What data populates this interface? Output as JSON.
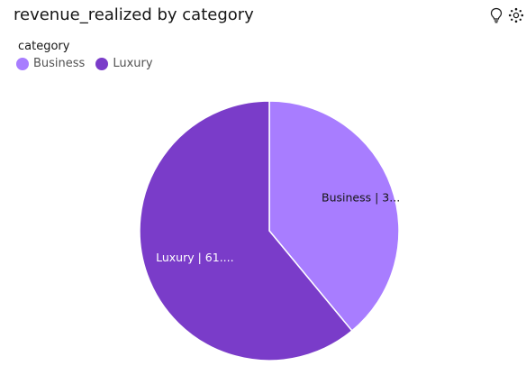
{
  "header": {
    "title": "revenue_realized by category",
    "insights_icon": "lightbulb-icon",
    "settings_icon": "gear-icon"
  },
  "legend": {
    "title": "category",
    "items": [
      {
        "label": "Business",
        "color": "#a87dff"
      },
      {
        "label": "Luxury",
        "color": "#7a3cc9"
      }
    ]
  },
  "chart_data": {
    "type": "pie",
    "title": "revenue_realized by category",
    "legend_title": "category",
    "legend_position": "top-left",
    "slices": [
      {
        "name": "Business",
        "value": 39,
        "color": "#a87dff",
        "label_text": "Business | 3..."
      },
      {
        "name": "Luxury",
        "value": 61,
        "color": "#7a3cc9",
        "label_text": "Luxury | 61...."
      }
    ]
  }
}
